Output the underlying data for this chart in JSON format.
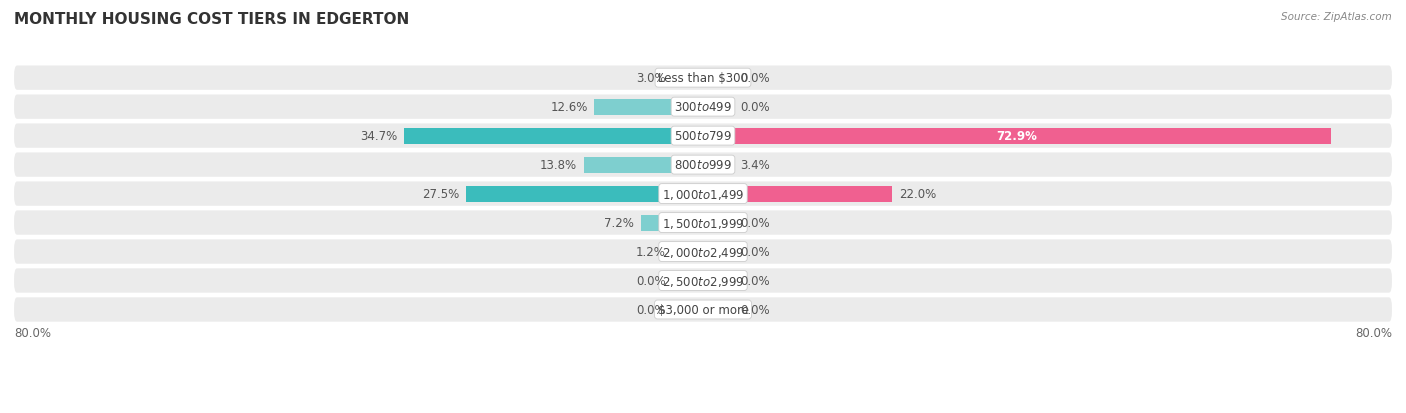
{
  "title": "MONTHLY HOUSING COST TIERS IN EDGERTON",
  "source": "Source: ZipAtlas.com",
  "categories": [
    "Less than $300",
    "$300 to $499",
    "$500 to $799",
    "$800 to $999",
    "$1,000 to $1,499",
    "$1,500 to $1,999",
    "$2,000 to $2,499",
    "$2,500 to $2,999",
    "$3,000 or more"
  ],
  "owner_values": [
    3.0,
    12.6,
    34.7,
    13.8,
    27.5,
    7.2,
    1.2,
    0.0,
    0.0
  ],
  "renter_values": [
    0.0,
    0.0,
    72.9,
    3.4,
    22.0,
    0.0,
    0.0,
    0.0,
    0.0
  ],
  "owner_color_dark": "#3BBCBC",
  "owner_color_light": "#7ECFCF",
  "renter_color_dark": "#F06090",
  "renter_color_light": "#F8A8BF",
  "row_bg_color": "#EBEBEB",
  "bg_color": "#FFFFFF",
  "stub_size": 3.5,
  "xlim": 80.0,
  "title_fontsize": 11,
  "source_fontsize": 7.5,
  "value_fontsize": 8.5,
  "cat_fontsize": 8.5,
  "legend_fontsize": 9,
  "axis_tick_fontsize": 8.5
}
